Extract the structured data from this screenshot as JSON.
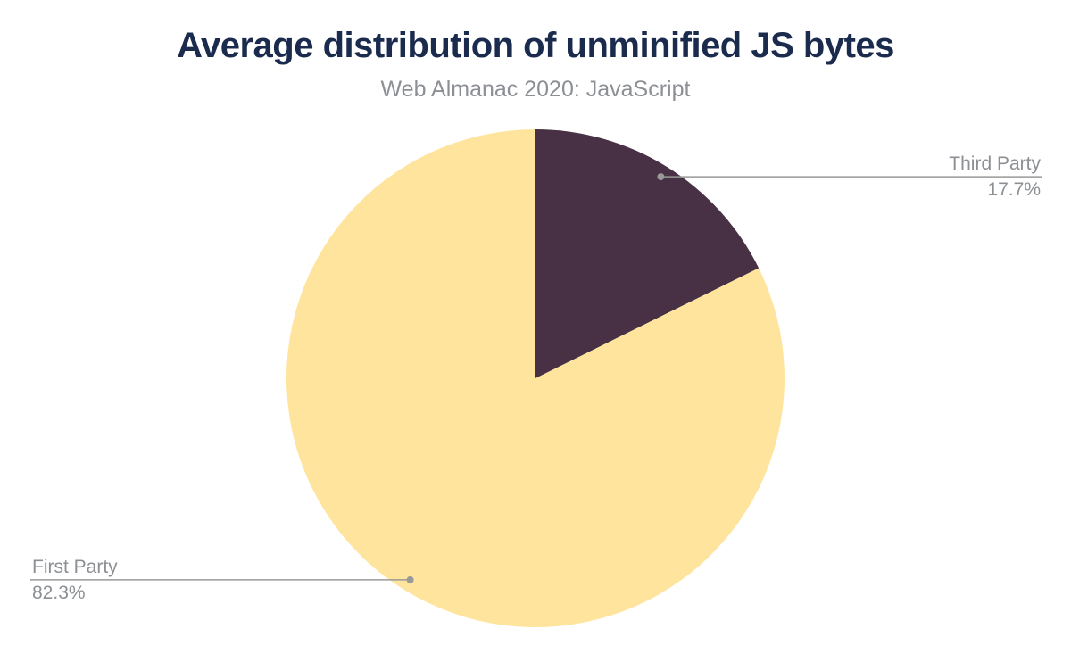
{
  "chart_data": {
    "type": "pie",
    "title": "Average distribution of unminified JS bytes",
    "subtitle": "Web Almanac 2020: JavaScript",
    "unit": "%",
    "total": 100,
    "start_angle_deg": 0,
    "direction": "clockwise",
    "legend": "none",
    "slices": [
      {
        "label": "Third Party",
        "value": 17.7,
        "value_label": "17.7%",
        "color": "#483145",
        "callout_side": "right"
      },
      {
        "label": "First Party",
        "value": 82.3,
        "value_label": "82.3%",
        "color": "#fee49c",
        "callout_side": "left"
      }
    ],
    "colors": {
      "title": "#1a2b4e",
      "subtitle": "#8c8f94",
      "label_text": "#8c8f94",
      "leader_line": "#999999",
      "background": "#ffffff"
    }
  }
}
